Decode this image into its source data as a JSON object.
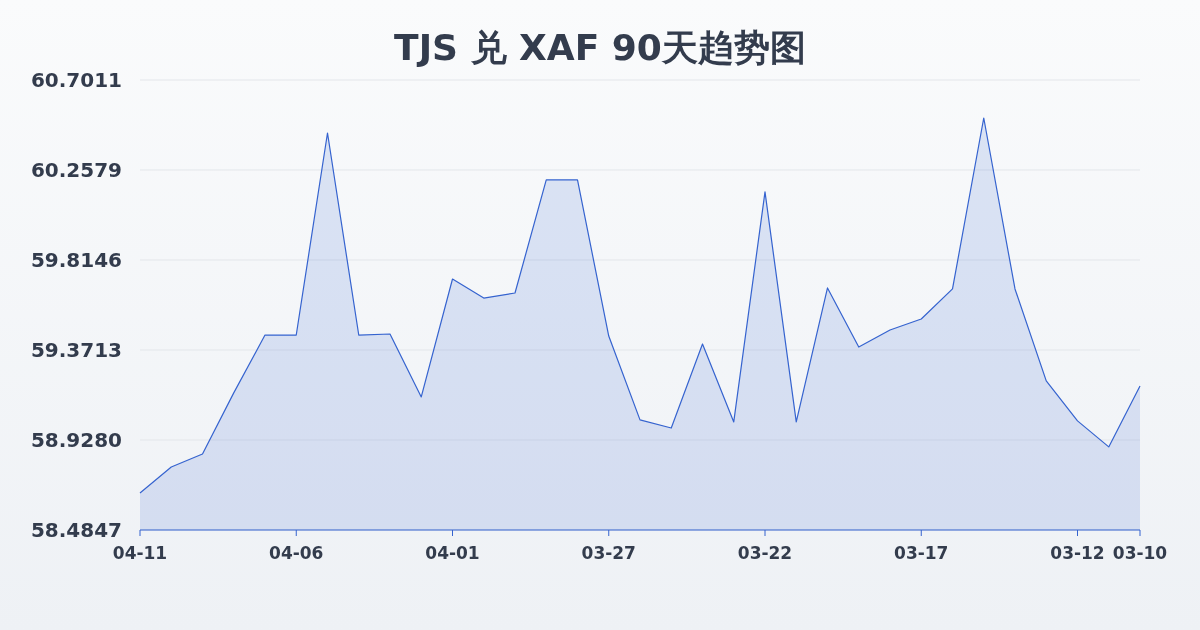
{
  "chart_data": {
    "type": "area",
    "title": "TJS 兑 XAF 90天趋势图",
    "categories": [
      "04-11",
      null,
      null,
      null,
      null,
      "04-06",
      null,
      null,
      null,
      null,
      "04-01",
      null,
      null,
      null,
      null,
      "03-27",
      null,
      null,
      null,
      null,
      "03-22",
      null,
      null,
      null,
      null,
      "03-17",
      null,
      null,
      null,
      null,
      "03-12",
      null,
      "03-10"
    ],
    "series": [
      {
        "color": "#3563cf",
        "values": [
          58.667,
          58.795,
          58.859,
          59.16,
          59.445,
          59.445,
          60.44,
          59.445,
          59.45,
          59.14,
          59.721,
          59.627,
          59.652,
          60.209,
          60.209,
          59.44,
          59.027,
          58.987,
          59.401,
          59.017,
          60.15,
          59.017,
          59.677,
          59.386,
          59.47,
          59.524,
          59.672,
          60.514,
          59.672,
          59.219,
          59.022,
          58.894,
          59.194
        ]
      }
    ],
    "ylim": [
      58.4847,
      60.7011
    ],
    "yticks": [
      58.4847,
      {
        "value": 58.928,
        "label": "58.9280"
      },
      59.3713,
      59.8146,
      60.2579,
      60.7011
    ],
    "grid": "y"
  }
}
